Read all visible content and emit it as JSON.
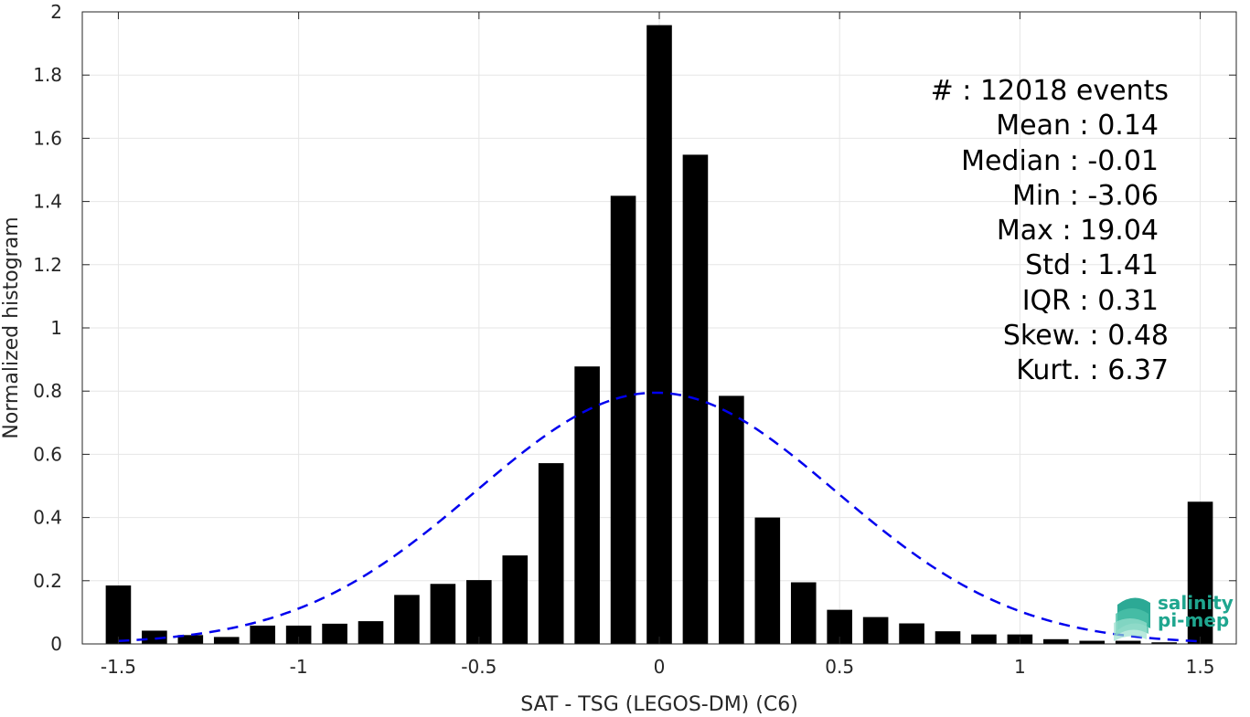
{
  "chart_data": {
    "type": "bar",
    "xlabel": "SAT - TSG (LEGOS-DM) (C6)",
    "ylabel": "Normalized histogram",
    "xlim": [
      -1.6,
      1.6
    ],
    "ylim": [
      0,
      2
    ],
    "grid": true,
    "x_ticks": [
      -1.5,
      -1,
      -0.5,
      0,
      0.5,
      1,
      1.5
    ],
    "x_tick_labels": [
      "-1.5",
      "-1",
      "-0.5",
      "0",
      "0.5",
      "1",
      "1.5"
    ],
    "y_ticks": [
      0,
      0.2,
      0.4,
      0.6,
      0.8,
      1,
      1.2,
      1.4,
      1.6,
      1.8,
      2
    ],
    "y_tick_labels": [
      "0",
      "0.2",
      "0.4",
      "0.6",
      "0.8",
      "1",
      "1.2",
      "1.4",
      "1.6",
      "1.8",
      "2"
    ],
    "bar_width": 0.07,
    "bar_color": "#000000",
    "x": [
      -1.5,
      -1.4,
      -1.3,
      -1.2,
      -1.1,
      -1.0,
      -0.9,
      -0.8,
      -0.7,
      -0.6,
      -0.5,
      -0.4,
      -0.3,
      -0.2,
      -0.1,
      0.0,
      0.1,
      0.2,
      0.3,
      0.4,
      0.5,
      0.6,
      0.7,
      0.8,
      0.9,
      1.0,
      1.1,
      1.2,
      1.3,
      1.4,
      1.5
    ],
    "values": [
      0.185,
      0.042,
      0.028,
      0.022,
      0.058,
      0.058,
      0.064,
      0.072,
      0.155,
      0.19,
      0.202,
      0.28,
      0.572,
      0.878,
      1.418,
      1.958,
      1.548,
      0.785,
      0.4,
      0.195,
      0.108,
      0.085,
      0.065,
      0.04,
      0.03,
      0.03,
      0.015,
      0.01,
      0.01,
      0.005,
      0.45
    ],
    "fit_curve": {
      "style": "dashed",
      "color": "#0000ee",
      "mean": -0.01,
      "peak": 0.795,
      "sigma": 0.5,
      "x_range": [
        -1.5,
        1.5
      ]
    },
    "stats": [
      {
        "text": "#  : 12018 events"
      },
      {
        "text": "Mean : 0.14"
      },
      {
        "text": "Median : -0.01"
      },
      {
        "text": "Min : -3.06"
      },
      {
        "text": "Max : 19.04"
      },
      {
        "text": "Std : 1.41"
      },
      {
        "text": "IQR : 0.31"
      },
      {
        "text": "Skew. : 0.48"
      },
      {
        "text": "Kurt. : 6.37"
      }
    ]
  },
  "logo": {
    "line1": "salinity",
    "line2": "pi-mep",
    "color": "#1fa68f"
  }
}
